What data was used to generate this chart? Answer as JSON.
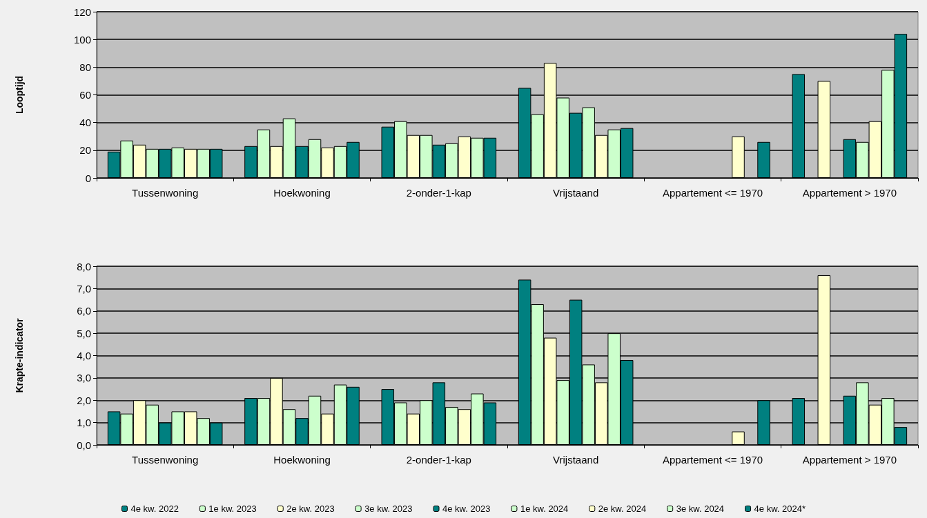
{
  "chart_data": [
    {
      "type": "bar",
      "ylabel": "Looptijd",
      "categories": [
        "Tussenwoning",
        "Hoekwoning",
        "2-onder-1-kap",
        "Vrijstaand",
        "Appartement <= 1970",
        "Appartement > 1970"
      ],
      "ylim": [
        0,
        120
      ],
      "yticks": [
        0,
        20,
        40,
        60,
        80,
        100,
        120
      ],
      "grid": "y",
      "legend": false,
      "series": [
        {
          "color": "#008080",
          "values": [
            19,
            23,
            37,
            65,
            null,
            75
          ]
        },
        {
          "color": "#ccffcc",
          "values": [
            27,
            35,
            41,
            46,
            null,
            null
          ]
        },
        {
          "color": "#ffffcc",
          "values": [
            24,
            23,
            31,
            83,
            null,
            70
          ]
        },
        {
          "color": "#ccffcc",
          "values": [
            21,
            43,
            31,
            58,
            null,
            null
          ]
        },
        {
          "color": "#008080",
          "values": [
            21,
            23,
            24,
            47,
            null,
            28
          ]
        },
        {
          "color": "#ccffcc",
          "values": [
            22,
            28,
            25,
            51,
            null,
            26
          ]
        },
        {
          "color": "#ffffcc",
          "values": [
            21,
            22,
            30,
            31,
            30,
            41
          ]
        },
        {
          "color": "#ccffcc",
          "values": [
            21,
            23,
            29,
            35,
            null,
            78
          ]
        },
        {
          "color": "#008080",
          "values": [
            21,
            26,
            29,
            36,
            26,
            104
          ]
        }
      ]
    },
    {
      "type": "bar",
      "ylabel": "Krapte-indicator",
      "categories": [
        "Tussenwoning",
        "Hoekwoning",
        "2-onder-1-kap",
        "Vrijstaand",
        "Appartement <= 1970",
        "Appartement > 1970"
      ],
      "ylim": [
        0,
        8
      ],
      "yticks": [
        {
          "value": 0,
          "label": "0,0"
        },
        {
          "value": 1,
          "label": "1,0"
        },
        {
          "value": 2,
          "label": "2,0"
        },
        {
          "value": 3,
          "label": "3,0"
        },
        {
          "value": 4,
          "label": "4,0"
        },
        {
          "value": 5,
          "label": "5,0"
        },
        {
          "value": 6,
          "label": "6,0"
        },
        {
          "value": 7,
          "label": "7,0"
        },
        {
          "value": 8,
          "label": "8,0"
        }
      ],
      "grid": "y",
      "legend": "bottom",
      "series": [
        {
          "name": "4e kw. 2022",
          "color": "#008080",
          "values": [
            1.5,
            2.1,
            2.5,
            7.4,
            null,
            2.1
          ]
        },
        {
          "name": "1e kw. 2023",
          "color": "#ccffcc",
          "values": [
            1.4,
            2.1,
            1.9,
            6.3,
            null,
            null
          ]
        },
        {
          "name": "2e kw. 2023",
          "color": "#ffffcc",
          "values": [
            2.0,
            3.0,
            1.4,
            4.8,
            null,
            7.6
          ]
        },
        {
          "name": "3e kw. 2023",
          "color": "#ccffcc",
          "values": [
            1.8,
            1.6,
            2.0,
            2.9,
            null,
            null
          ]
        },
        {
          "name": "4e kw. 2023",
          "color": "#008080",
          "values": [
            1.0,
            1.2,
            2.8,
            6.5,
            null,
            2.2
          ]
        },
        {
          "name": "1e kw. 2024",
          "color": "#ccffcc",
          "values": [
            1.5,
            2.2,
            1.7,
            3.6,
            null,
            2.8
          ]
        },
        {
          "name": "2e kw. 2024",
          "color": "#ffffcc",
          "values": [
            1.5,
            1.4,
            1.6,
            2.8,
            0.6,
            1.8
          ]
        },
        {
          "name": "3e kw. 2024",
          "color": "#ccffcc",
          "values": [
            1.2,
            2.7,
            2.3,
            5.0,
            null,
            2.1
          ]
        },
        {
          "name": "4e kw. 2024*",
          "color": "#008080",
          "values": [
            1.0,
            2.6,
            1.9,
            3.8,
            2.0,
            0.8
          ]
        }
      ]
    }
  ]
}
